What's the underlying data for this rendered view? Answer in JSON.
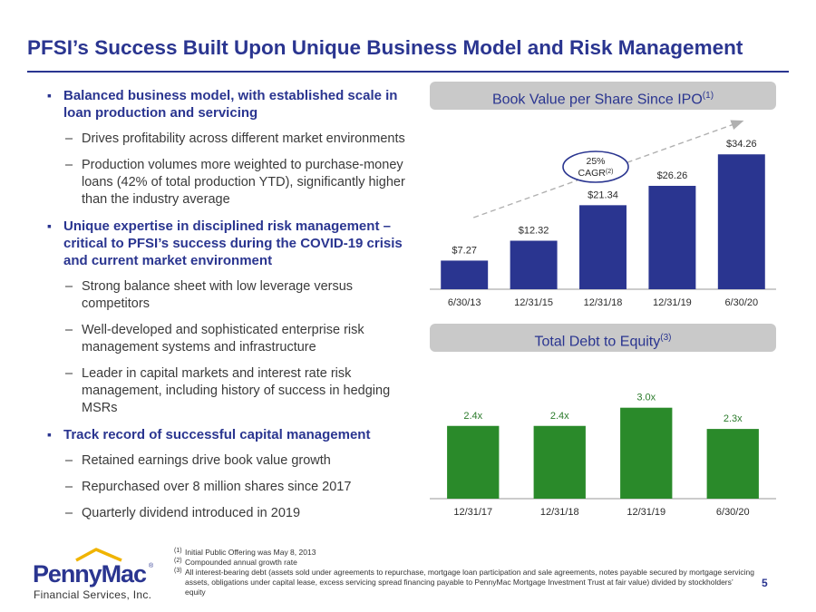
{
  "title": "PFSI’s Success Built Upon Unique Business Model and Risk Management",
  "bullets": [
    {
      "level": 1,
      "text": "Balanced business model, with established scale in loan production and servicing"
    },
    {
      "level": 2,
      "text": "Drives profitability across different market environments"
    },
    {
      "level": 2,
      "text": "Production volumes more weighted to purchase-money loans (42% of total production YTD), significantly higher than the industry average"
    },
    {
      "level": 1,
      "text": "Unique expertise in disciplined risk management – critical to PFSI’s success during the COVID-19 crisis and current market environment"
    },
    {
      "level": 2,
      "text": "Strong balance sheet with low leverage versus competitors"
    },
    {
      "level": 2,
      "text": "Well-developed and sophisticated enterprise risk management systems and infrastructure"
    },
    {
      "level": 2,
      "text": "Leader in capital markets and interest rate risk management, including history of success in hedging MSRs"
    },
    {
      "level": 1,
      "text": "Track record of successful capital management"
    },
    {
      "level": 2,
      "text": "Retained earnings drive book value growth"
    },
    {
      "level": 2,
      "text": "Repurchased over 8 million shares since 2017"
    },
    {
      "level": 2,
      "text": "Quarterly dividend introduced in 2019"
    }
  ],
  "chart_data": [
    {
      "type": "bar",
      "title": "Book Value per Share Since IPO",
      "title_note": "(1)",
      "categories": [
        "6/30/13",
        "12/31/15",
        "12/31/18",
        "12/31/19",
        "6/30/20"
      ],
      "values": [
        7.27,
        12.32,
        21.34,
        26.26,
        34.26
      ],
      "data_labels": [
        "$7.27",
        "$12.32",
        "$21.34",
        "$26.26",
        "$34.26"
      ],
      "ylim": [
        0,
        38
      ],
      "bar_color": "#2a3590",
      "annotation": {
        "line1": "25%",
        "line2": "CAGR",
        "note": "(2)",
        "trend": "dashed-arrow"
      }
    },
    {
      "type": "bar",
      "title": "Total Debt to Equity",
      "title_note": "(3)",
      "categories": [
        "12/31/17",
        "12/31/18",
        "12/31/19",
        "6/30/20"
      ],
      "values": [
        2.4,
        2.4,
        3.0,
        2.3
      ],
      "data_labels": [
        "2.4x",
        "2.4x",
        "3.0x",
        "2.3x"
      ],
      "ylim": [
        0,
        3.2
      ],
      "bar_color": "#2a8a2a",
      "label_color": "#2a7a2a"
    }
  ],
  "footnotes": [
    {
      "mark": "(1)",
      "text": "Initial Public Offering was May 8, 2013"
    },
    {
      "mark": "(2)",
      "text": "Compounded annual growth rate"
    },
    {
      "mark": "(3)",
      "text": "All interest-bearing debt (assets sold under agreements to repurchase, mortgage loan participation and sale agreements, notes payable secured by mortgage servicing assets, obligations under capital lease, excess servicing spread financing payable to PennyMac Mortgage Investment Trust at fair value) divided by stockholders’ equity"
    }
  ],
  "page_number": "5",
  "logo": {
    "brand": "PennyMac",
    "registered": "®",
    "tagline": "Financial Services, Inc."
  },
  "colors": {
    "navy": "#2a3590",
    "green": "#2a8a2a",
    "gold": "#f0b400",
    "pill": "#c9c9c9"
  }
}
